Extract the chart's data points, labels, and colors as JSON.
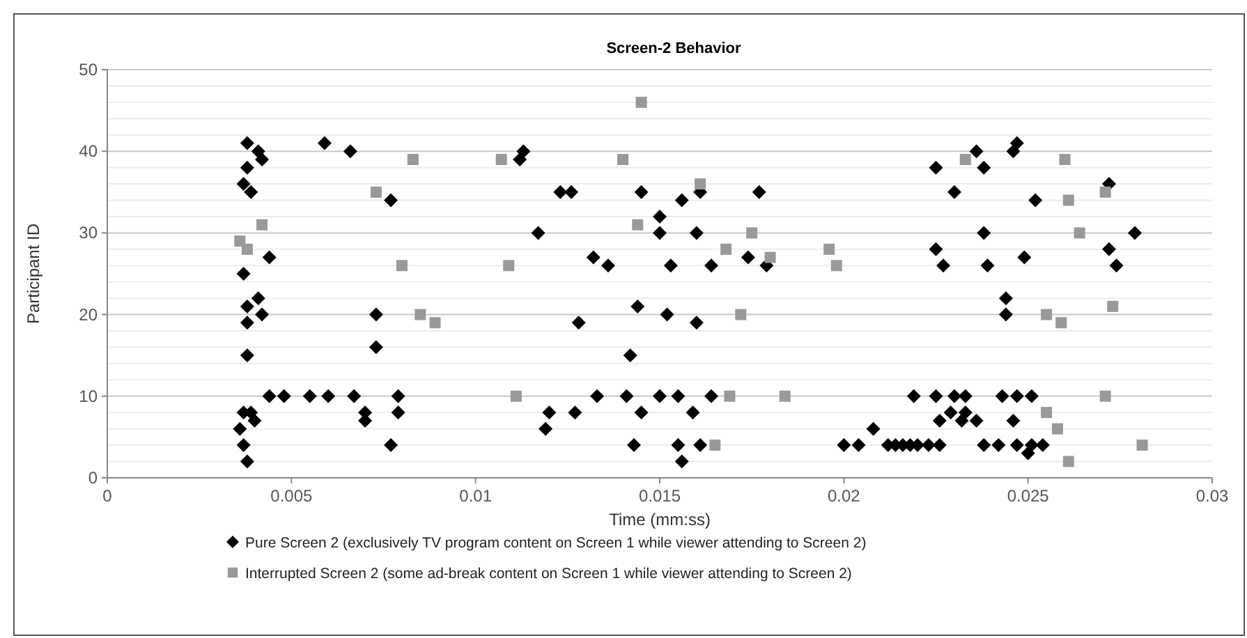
{
  "chart_data": {
    "type": "scatter",
    "title": "Screen-2 Behavior",
    "xlabel": "Time (mm:ss)",
    "ylabel": "Participant ID",
    "xlim": [
      0,
      0.03
    ],
    "xticks": [
      0,
      0.005,
      0.01,
      0.015,
      0.02,
      0.025,
      0.03
    ],
    "ylim": [
      0,
      50
    ],
    "yticks": [
      0,
      {
        "value": 2,
        "label": null
      },
      {
        "value": 4,
        "label": null
      },
      {
        "value": 6,
        "label": null
      },
      {
        "value": 8,
        "label": null
      },
      10,
      {
        "value": 12,
        "label": null
      },
      {
        "value": 14,
        "label": null
      },
      {
        "value": 16,
        "label": null
      },
      {
        "value": 18,
        "label": null
      },
      20,
      {
        "value": 22,
        "label": null
      },
      {
        "value": 24,
        "label": null
      },
      {
        "value": 26,
        "label": null
      },
      {
        "value": 28,
        "label": null
      },
      30,
      {
        "value": 32,
        "label": null
      },
      {
        "value": 34,
        "label": null
      },
      {
        "value": 36,
        "label": null
      },
      {
        "value": 38,
        "label": null
      },
      40,
      {
        "value": 42,
        "label": null
      },
      {
        "value": 44,
        "label": null
      },
      {
        "value": 46,
        "label": null
      },
      {
        "value": 48,
        "label": null
      },
      50
    ],
    "grid": "y",
    "legend": "bottom",
    "series": [
      {
        "name": "Pure Screen 2 (exclusively TV program content on Screen 1 while viewer attending to Screen 2)",
        "color": "#000000",
        "marker": "diamond",
        "x": [
          0.0038,
          0.0041,
          0.0042,
          0.0038,
          0.0037,
          0.0039,
          0.0044,
          0.0037,
          0.0041,
          0.0038,
          0.0042,
          0.0038,
          0.0038,
          0.0037,
          0.0039,
          0.004,
          0.0036,
          0.0037,
          0.0038,
          0.0044,
          0.0048,
          0.0055,
          0.006,
          0.0059,
          0.0066,
          0.007,
          0.0073,
          0.0073,
          0.0067,
          0.007,
          0.0077,
          0.0077,
          0.0079,
          0.0079,
          0.0113,
          0.0112,
          0.0123,
          0.0126,
          0.0117,
          0.0132,
          0.0136,
          0.0128,
          0.0133,
          0.0141,
          0.015,
          0.0155,
          0.012,
          0.0127,
          0.0119,
          0.0145,
          0.0143,
          0.0155,
          0.0156,
          0.0145,
          0.0156,
          0.015,
          0.015,
          0.0153,
          0.0144,
          0.0152,
          0.0142,
          0.0161,
          0.0177,
          0.016,
          0.0164,
          0.0174,
          0.0179,
          0.016,
          0.0164,
          0.0159,
          0.0161,
          0.02,
          0.0204,
          0.0208,
          0.0212,
          0.0214,
          0.0216,
          0.0218,
          0.022,
          0.0223,
          0.0226,
          0.0219,
          0.0225,
          0.0226,
          0.0225,
          0.0225,
          0.0227,
          0.0236,
          0.0238,
          0.0246,
          0.0247,
          0.023,
          0.0252,
          0.0238,
          0.0279,
          0.0249,
          0.0272,
          0.0272,
          0.0239,
          0.0274,
          0.0244,
          0.0244,
          0.023,
          0.0233,
          0.0243,
          0.0247,
          0.0251,
          0.0229,
          0.0233,
          0.0232,
          0.0236,
          0.0246,
          0.0238,
          0.0242,
          0.0247,
          0.0251,
          0.0254,
          0.025
        ],
        "values": [
          41,
          40,
          39,
          38,
          36,
          35,
          27,
          25,
          22,
          21,
          20,
          19,
          15,
          8,
          8,
          7,
          6,
          4,
          2,
          10,
          10,
          10,
          10,
          41,
          40,
          8,
          20,
          16,
          10,
          7,
          4,
          34,
          10,
          8,
          40,
          39,
          35,
          35,
          30,
          27,
          26,
          19,
          10,
          10,
          10,
          10,
          8,
          8,
          6,
          8,
          4,
          4,
          34,
          35,
          2,
          32,
          30,
          26,
          21,
          20,
          15,
          35,
          35,
          30,
          26,
          27,
          26,
          19,
          10,
          8,
          4,
          4,
          4,
          6,
          4,
          4,
          4,
          4,
          4,
          4,
          4,
          10,
          10,
          7,
          38,
          28,
          26,
          40,
          38,
          40,
          41,
          35,
          34,
          30,
          30,
          27,
          28,
          36,
          26,
          26,
          22,
          20,
          10,
          10,
          10,
          10,
          10,
          8,
          8,
          7,
          7,
          7,
          4,
          4,
          4,
          4,
          4,
          3
        ]
      },
      {
        "name": "Interrupted Screen 2 (some ad-break content on Screen 1 while viewer attending to Screen 2)",
        "color": "#999999",
        "marker": "square",
        "x": [
          0.0036,
          0.0038,
          0.0042,
          0.0073,
          0.0083,
          0.0107,
          0.014,
          0.0145,
          0.0144,
          0.008,
          0.0109,
          0.0085,
          0.0089,
          0.0111,
          0.0161,
          0.0175,
          0.0168,
          0.018,
          0.0196,
          0.0198,
          0.0172,
          0.0169,
          0.0184,
          0.0165,
          0.0233,
          0.026,
          0.0261,
          0.0271,
          0.0264,
          0.0273,
          0.0255,
          0.0259,
          0.0271,
          0.0255,
          0.0258,
          0.0281,
          0.0261
        ],
        "values": [
          29,
          28,
          31,
          35,
          39,
          39,
          39,
          46,
          31,
          26,
          26,
          20,
          19,
          10,
          36,
          30,
          28,
          27,
          28,
          26,
          20,
          10,
          10,
          4,
          39,
          39,
          34,
          35,
          30,
          21,
          20,
          19,
          10,
          8,
          6,
          4,
          2
        ]
      }
    ]
  }
}
